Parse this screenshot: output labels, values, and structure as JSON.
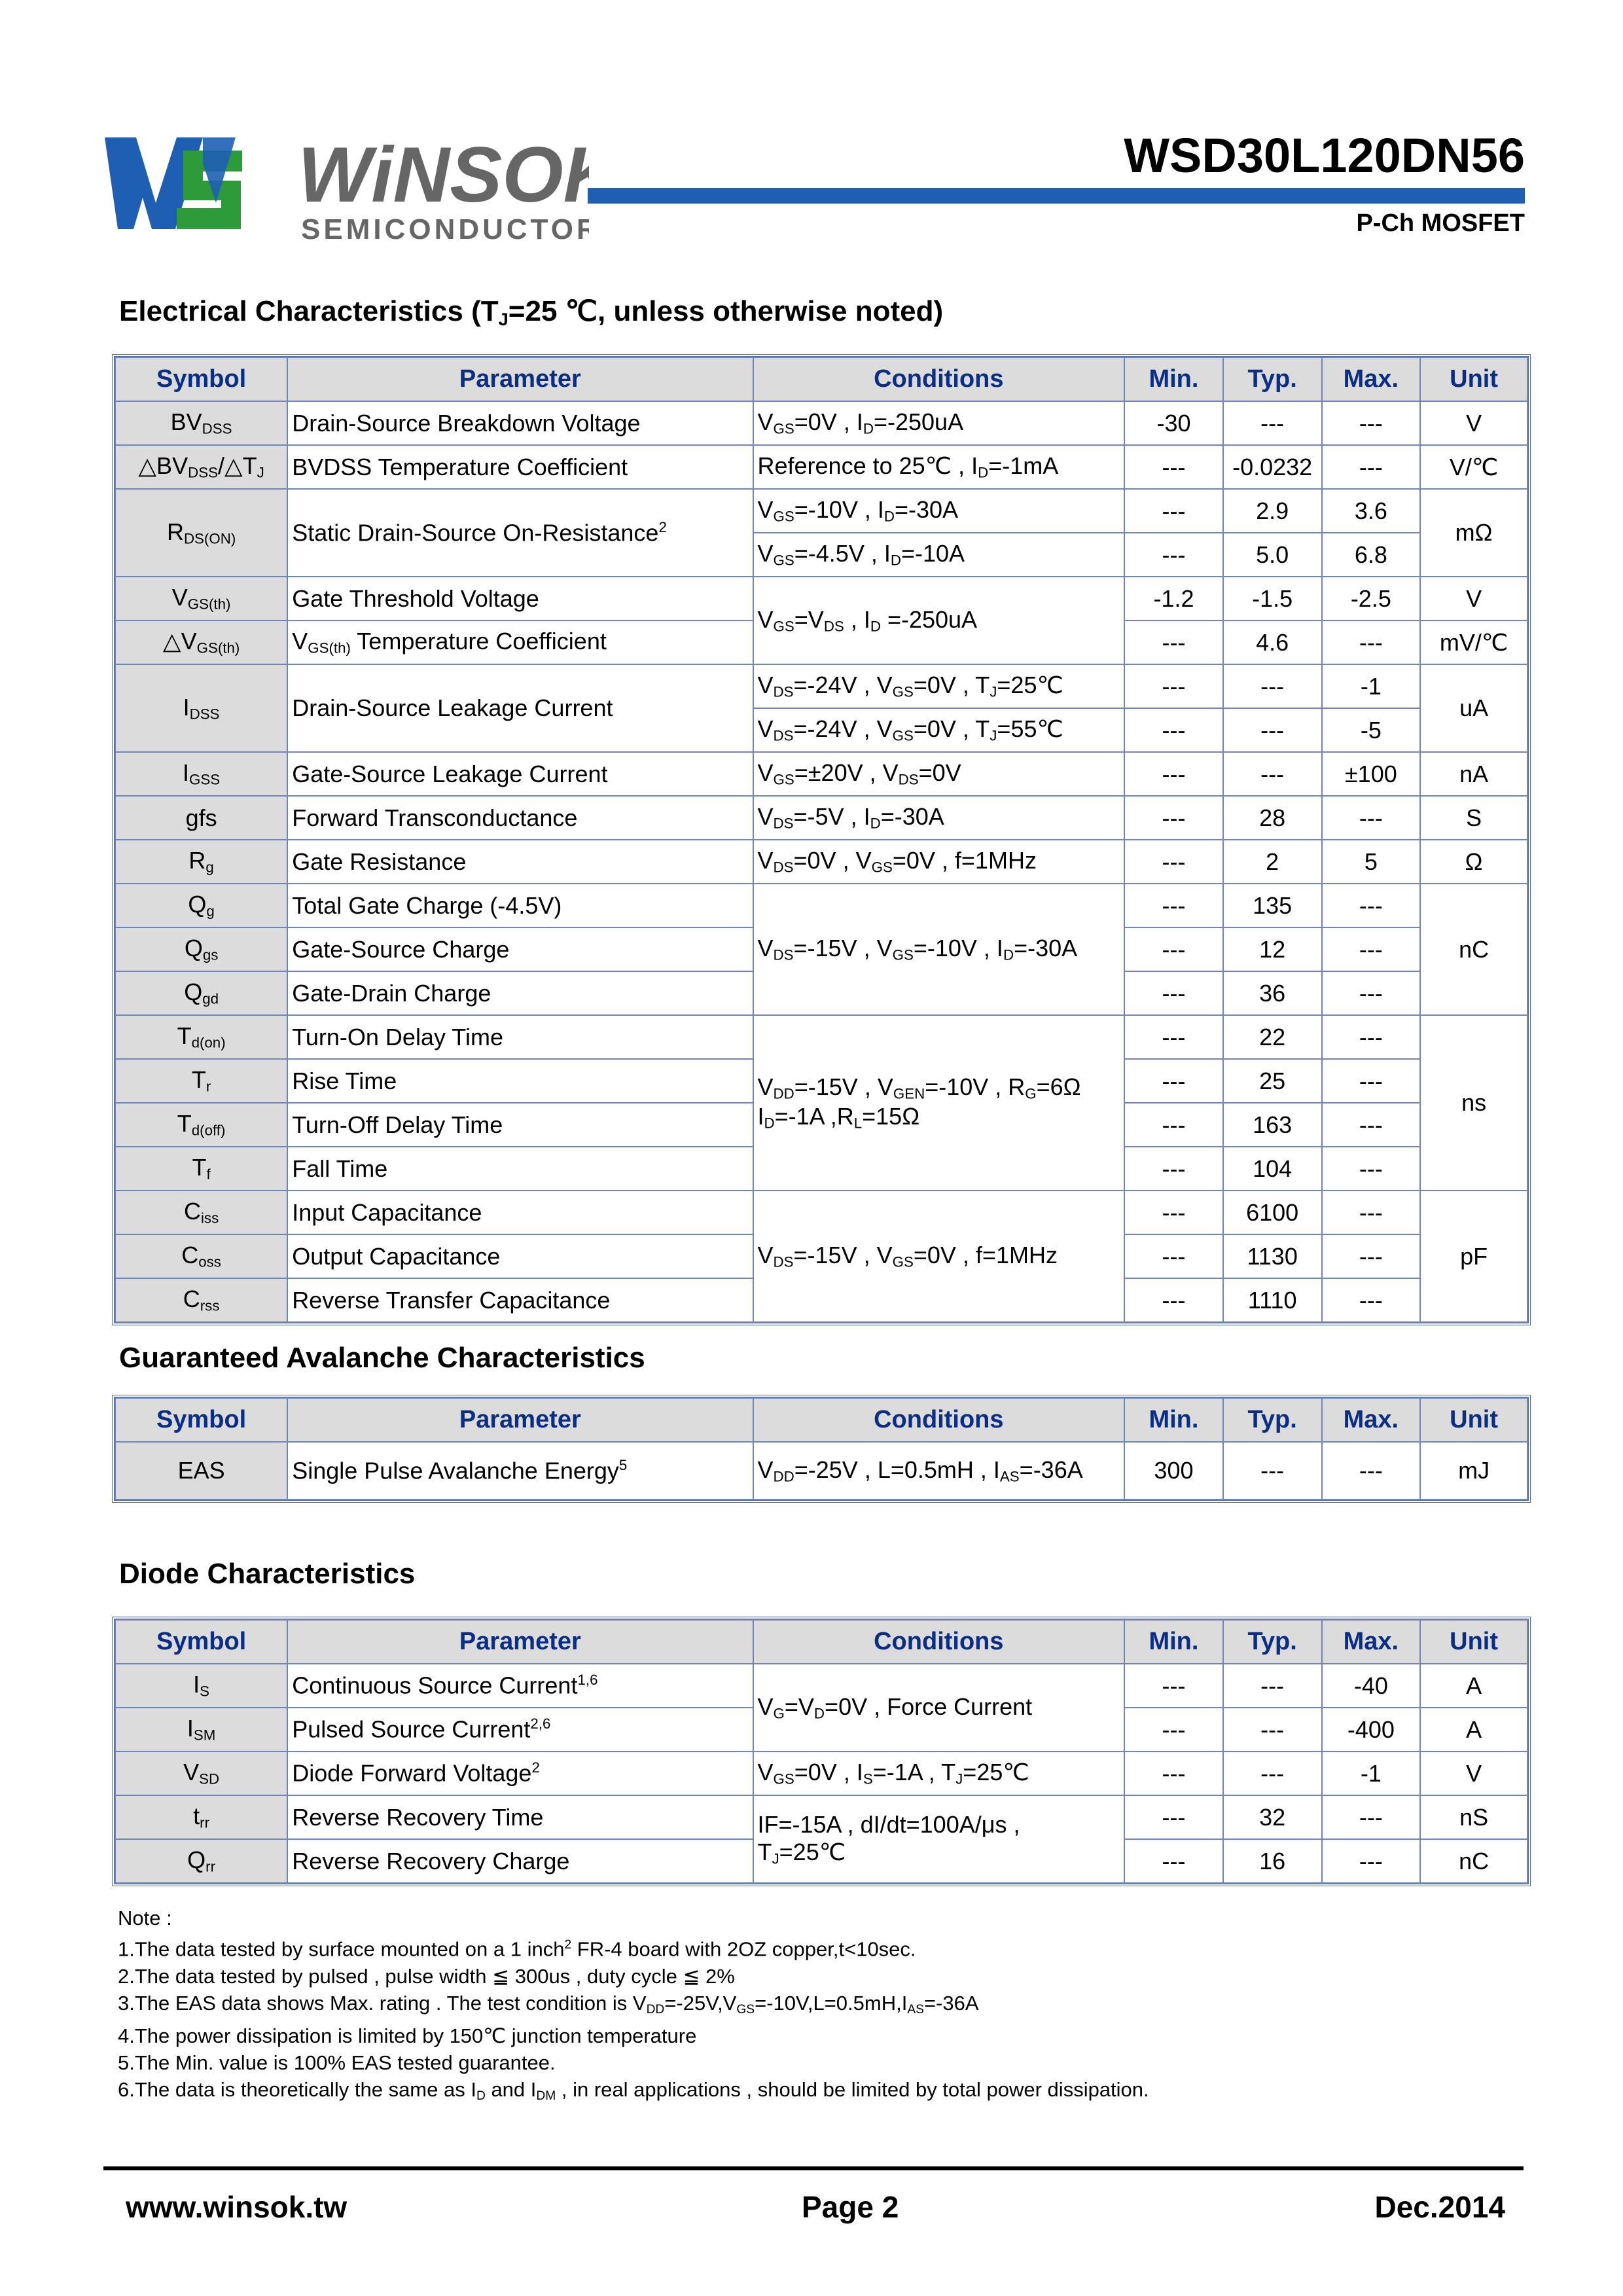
{
  "header": {
    "logo_text": "WiNSOK",
    "logo_subtext": "SEMICONDUCTOR",
    "part_number": "WSD30L120DN56",
    "device_type": "P-Ch MOSFET",
    "colors": {
      "brand_blue": "#1e5fb4",
      "brand_green": "#2e9b3a",
      "logo_gray": "#666666"
    }
  },
  "sections": {
    "electrical": {
      "title": "Electrical Characteristics (TJ=25 ℃, unless otherwise noted)",
      "title_pre": "Electrical Characteristics (T",
      "title_sub": "J",
      "title_post": "=25  ℃, unless otherwise noted)"
    },
    "avalanche": {
      "title": "Guaranteed Avalanche Characteristics"
    },
    "diode": {
      "title": "Diode Characteristics"
    }
  },
  "table_headers": {
    "symbol": "Symbol",
    "parameter": "Parameter",
    "conditions": "Conditions",
    "min": "Min.",
    "typ": "Typ.",
    "max": "Max.",
    "unit": "Unit"
  },
  "electrical_rows": {
    "bvdss": {
      "param": "Drain-Source Breakdown Voltage",
      "cond": "VGS=0V , ID=-250uA",
      "min": "-30",
      "typ": "---",
      "max": "---",
      "unit": "V"
    },
    "dbvdss": {
      "param": "BVDSS Temperature Coefficient",
      "cond_pre": "Reference to 25℃ , I",
      "min": "---",
      "typ": "-0.0232",
      "max": "---",
      "unit": "V/℃"
    },
    "rdson": {
      "param": "Static Drain-Source On-Resistance",
      "sup": "2",
      "r1": {
        "min": "---",
        "typ": "2.9",
        "max": "3.6"
      },
      "r2": {
        "min": "---",
        "typ": "5.0",
        "max": "6.8"
      },
      "unit": "mΩ"
    },
    "vgsth": {
      "param": "Gate Threshold Voltage",
      "min": "-1.2",
      "typ": "-1.5",
      "max": "-2.5",
      "unit": "V"
    },
    "dvgsth": {
      "param_post": " Temperature Coefficient",
      "min": "---",
      "typ": "4.6",
      "max": "---",
      "unit": "mV/℃"
    },
    "idss": {
      "param": "Drain-Source Leakage Current",
      "r1": {
        "min": "---",
        "typ": "---",
        "max": "-1"
      },
      "r2": {
        "min": "---",
        "typ": "---",
        "max": "-5"
      },
      "unit": "uA"
    },
    "igss": {
      "param": "Gate-Source Leakage Current",
      "min": "---",
      "typ": "---",
      "max": "±100",
      "unit": "nA"
    },
    "gfs": {
      "symbol": "gfs",
      "param": "Forward Transconductance",
      "min": "---",
      "typ": "28",
      "max": "---",
      "unit": "S"
    },
    "rg": {
      "param": "Gate Resistance",
      "min": "---",
      "typ": "2",
      "max": "5",
      "unit": "Ω"
    },
    "qg": {
      "param": "Total Gate Charge (-4.5V)",
      "min": "---",
      "typ": "135",
      "max": "---"
    },
    "qgs": {
      "param": "Gate-Source Charge",
      "min": "---",
      "typ": "12",
      "max": "---"
    },
    "qgd": {
      "param": "Gate-Drain Charge",
      "min": "---",
      "typ": "36",
      "max": "---",
      "unit": "nC"
    },
    "tdon": {
      "param": "Turn-On Delay Time",
      "min": "---",
      "typ": "22",
      "max": "---"
    },
    "tr": {
      "param": "Rise Time",
      "min": "---",
      "typ": "25",
      "max": "---"
    },
    "tdoff": {
      "param": "Turn-Off Delay Time",
      "min": "---",
      "typ": "163",
      "max": "---"
    },
    "tf": {
      "param": "Fall Time",
      "min": "---",
      "typ": "104",
      "max": "---",
      "unit": "ns"
    },
    "ciss": {
      "param": "Input Capacitance",
      "min": "---",
      "typ": "6100",
      "max": "---"
    },
    "coss": {
      "param": "Output Capacitance",
      "min": "---",
      "typ": "1130",
      "max": "---"
    },
    "crss": {
      "param": "Reverse Transfer Capacitance",
      "min": "---",
      "typ": "1110",
      "max": "---",
      "unit": "pF"
    }
  },
  "avalanche_rows": {
    "eas": {
      "symbol": "EAS",
      "param": "Single Pulse Avalanche Energy",
      "sup": "5",
      "min": "300",
      "typ": "---",
      "max": "---",
      "unit": "mJ"
    }
  },
  "diode_rows": {
    "is": {
      "param": "Continuous Source Current",
      "sup": "1,6",
      "min": "---",
      "typ": "---",
      "max": "-40",
      "unit": "A"
    },
    "ism": {
      "param": "Pulsed Source Current",
      "sup": "2,6",
      "min": "---",
      "typ": "---",
      "max": "-400",
      "unit": "A"
    },
    "vsd": {
      "param": "Diode Forward Voltage",
      "sup": "2",
      "min": "---",
      "typ": "---",
      "max": "-1",
      "unit": "V"
    },
    "trr": {
      "param": "Reverse Recovery Time",
      "min": "---",
      "typ": "32",
      "max": "---",
      "unit": "nS"
    },
    "qrr": {
      "param": "Reverse Recovery Charge",
      "min": "---",
      "typ": "16",
      "max": "---",
      "unit": "nC"
    },
    "common_cond_post": "=0V , Force Current",
    "trr_cond": "IF=-15A , dI/dt=100A/μs ,",
    "qrr_cond_post": "=25℃"
  },
  "notes": {
    "heading": "Note :",
    "n1_pre": "1.The data tested by surface mounted on a 1 inch",
    "n1_sup": "2",
    "n1_post": " FR-4 board with 2OZ copper,t<10sec.",
    "n2": "2.The data tested by pulsed , pulse width ≦ 300us , duty cycle ≦ 2%",
    "n3_pre": "3.The EAS data shows Max. rating . The test condition is V",
    "n4": "4.The power dissipation is limited by 150℃  junction temperature",
    "n5": "5.The Min. value is 100% EAS tested guarantee.",
    "n6_pre": "6.The data is theoretically the same as I",
    "n6_post": " , in real applications , should be limited by total power dissipation."
  },
  "footer": {
    "website": "www.winsok.tw",
    "page": "Page  2",
    "date": "Dec.2014"
  }
}
